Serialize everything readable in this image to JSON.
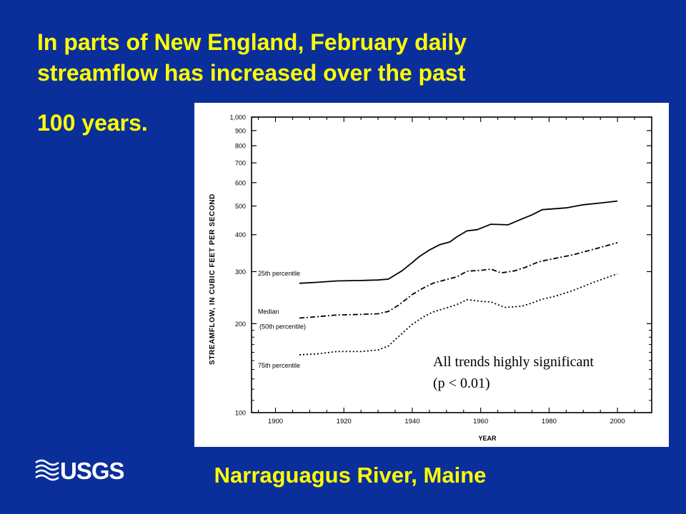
{
  "slide": {
    "title_lines": [
      "In parts of New England, February daily",
      "streamflow has increased over the past",
      "100 years."
    ],
    "subtitle": "Narraguagus River, Maine",
    "logo_text": "USGS",
    "colors": {
      "background": "#0b2f9a",
      "title": "#ffff00",
      "logo": "#ffffff"
    }
  },
  "chart_data": {
    "type": "line",
    "xlabel": "YEAR",
    "ylabel": "STREAMFLOW, IN CUBIC FEET PER SECOND",
    "xlim": [
      1893,
      2010
    ],
    "ylim": [
      100,
      1000
    ],
    "yscale": "log",
    "x_ticks": [
      1900,
      1920,
      1940,
      1960,
      1980,
      2000
    ],
    "y_ticks": [
      100,
      200,
      300,
      400,
      500,
      600,
      700,
      800,
      900,
      1000
    ],
    "y_tick_labels": [
      "100",
      "200",
      "300",
      "400",
      "500",
      "600",
      "700",
      "800",
      "900",
      "1,000"
    ],
    "annotation": "All trends highly significant\n(p < 0.01)",
    "series": [
      {
        "name": "25th percentile",
        "style": "solid",
        "x": [
          1907,
          1912,
          1918,
          1925,
          1930,
          1933,
          1937,
          1940,
          1942,
          1945,
          1948,
          1951,
          1953,
          1956,
          1959,
          1963,
          1968,
          1972,
          1975,
          1978,
          1985,
          1990,
          1995,
          2000
        ],
        "y": [
          274,
          276,
          279,
          280,
          281,
          283,
          302,
          322,
          337,
          355,
          370,
          378,
          393,
          412,
          416,
          434,
          432,
          452,
          467,
          486,
          493,
          505,
          512,
          520
        ]
      },
      {
        "name": "Median",
        "label_lines": [
          "Median",
          "(50th percentile)"
        ],
        "style": "dashdot",
        "x": [
          1907,
          1912,
          1918,
          1925,
          1930,
          1933,
          1936,
          1940,
          1943,
          1946,
          1950,
          1953,
          1956,
          1960,
          1963,
          1966,
          1970,
          1973,
          1977,
          1982,
          1987,
          1993,
          2000
        ],
        "y": [
          209,
          211,
          214,
          215,
          216,
          220,
          231,
          251,
          263,
          274,
          282,
          288,
          301,
          303,
          306,
          297,
          302,
          310,
          324,
          333,
          342,
          357,
          376
        ]
      },
      {
        "name": "75th percentile",
        "style": "dotted",
        "x": [
          1907,
          1912,
          1918,
          1925,
          1930,
          1933,
          1936,
          1940,
          1943,
          1946,
          1950,
          1953,
          1956,
          1960,
          1963,
          1967,
          1972,
          1975,
          1978,
          1982,
          1987,
          1993,
          2000
        ],
        "y": [
          157,
          158,
          161,
          161,
          163,
          168,
          181,
          199,
          210,
          219,
          226,
          232,
          241,
          238,
          237,
          227,
          229,
          235,
          242,
          248,
          259,
          276,
          295
        ]
      }
    ]
  }
}
